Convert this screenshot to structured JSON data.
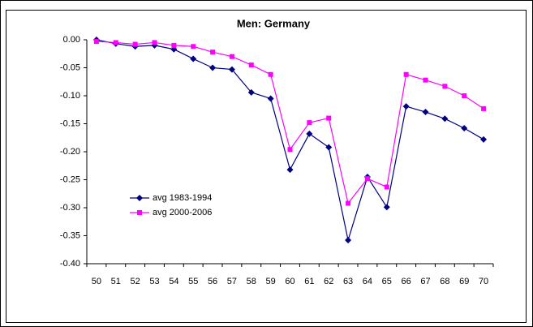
{
  "chart_data": {
    "type": "line",
    "title": "Men: Germany",
    "categories": [
      "50",
      "51",
      "52",
      "53",
      "54",
      "55",
      "56",
      "57",
      "58",
      "59",
      "60",
      "61",
      "62",
      "63",
      "64",
      "65",
      "66",
      "67",
      "68",
      "69",
      "70"
    ],
    "series": [
      {
        "name": "avg 1983-1994",
        "color": "#000080",
        "marker": "diamond",
        "values": [
          0.0,
          -0.007,
          -0.012,
          -0.01,
          -0.017,
          -0.034,
          -0.05,
          -0.053,
          -0.094,
          -0.105,
          -0.232,
          -0.168,
          -0.192,
          -0.358,
          -0.245,
          -0.299,
          -0.119,
          -0.129,
          -0.141,
          -0.158,
          -0.178
        ]
      },
      {
        "name": "avg 2000-2006",
        "color": "#ff00ff",
        "marker": "square",
        "values": [
          -0.003,
          -0.005,
          -0.008,
          -0.005,
          -0.01,
          -0.012,
          -0.022,
          -0.03,
          -0.045,
          -0.062,
          -0.196,
          -0.148,
          -0.14,
          -0.292,
          -0.248,
          -0.263,
          -0.062,
          -0.072,
          -0.083,
          -0.1,
          -0.123
        ]
      }
    ],
    "ylim": [
      -0.4,
      0
    ],
    "yticks": [
      {
        "value": 0,
        "label": "0.00"
      },
      {
        "value": -0.05,
        "label": "-0.05"
      },
      {
        "value": -0.1,
        "label": "-0.10"
      },
      {
        "value": -0.15,
        "label": "-0.15"
      },
      {
        "value": -0.2,
        "label": "-0.20"
      },
      {
        "value": -0.25,
        "label": "-0.25"
      },
      {
        "value": -0.3,
        "label": "-0.30"
      },
      {
        "value": -0.35,
        "label": "-0.35"
      },
      {
        "value": -0.4,
        "label": "-0.40"
      }
    ],
    "grid": false,
    "legend": "left"
  }
}
